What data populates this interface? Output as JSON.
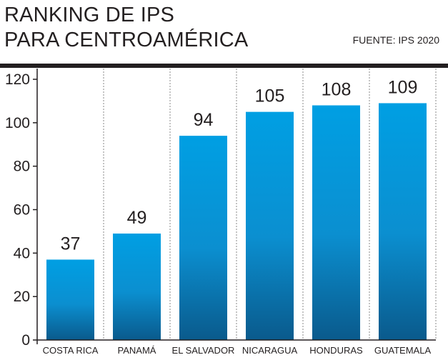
{
  "title_line1": "RANKING DE IPS",
  "title_line2": "PARA CENTROAMÉRICA",
  "source": "FUENTE: IPS 2020",
  "chart_data": {
    "type": "bar",
    "title": "RANKING DE IPS PARA CENTROAMÉRICA",
    "categories": [
      "COSTA RICA",
      "PANAMÁ",
      "EL SALVADOR",
      "NICARAGUA",
      "HONDURAS",
      "GUATEMALA"
    ],
    "values": [
      37,
      49,
      94,
      105,
      108,
      109
    ],
    "ylim": [
      0,
      120
    ],
    "yticks": [
      0,
      20,
      40,
      60,
      80,
      100,
      120
    ],
    "grid": "vertical dashed separators",
    "bar_color_top": "#009fe3",
    "bar_color_bottom": "#0a5a8c"
  }
}
